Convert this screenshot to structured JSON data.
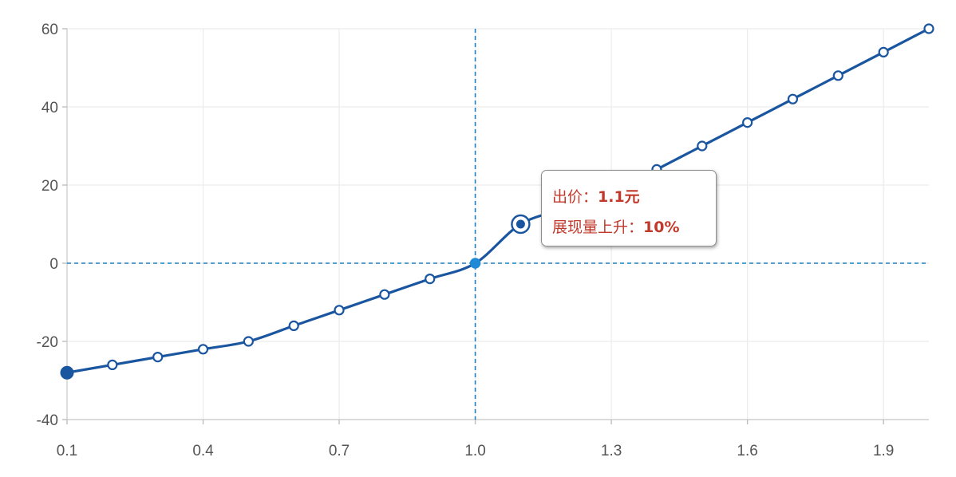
{
  "chart_data": {
    "type": "line",
    "title": "",
    "xlabel": "",
    "ylabel": "",
    "x": [
      0.1,
      0.2,
      0.3,
      0.4,
      0.5,
      0.6,
      0.7,
      0.8,
      0.9,
      1.0,
      1.1,
      1.2,
      1.3,
      1.4,
      1.5,
      1.6,
      1.7,
      1.8,
      1.9,
      2.0
    ],
    "series": [
      {
        "values": [
          -28,
          -26,
          -24,
          -22,
          -20,
          -16,
          -12,
          -8,
          -4,
          0,
          10,
          14,
          18,
          24,
          30,
          36,
          42,
          48,
          54,
          60
        ]
      }
    ],
    "xlim": [
      0.1,
      2.0
    ],
    "ylim": [
      -40,
      60
    ],
    "x_ticks": [
      "0.1",
      "0.4",
      "0.7",
      "1.0",
      "1.3",
      "1.6",
      "1.9"
    ],
    "x_tick_values": [
      0.1,
      0.4,
      0.7,
      1.0,
      1.3,
      1.6,
      1.9
    ],
    "y_ticks": [
      "60",
      "40",
      "20",
      "0",
      "-20",
      "-40"
    ],
    "y_tick_values": [
      60,
      40,
      20,
      0,
      -20,
      -40
    ],
    "x_grid_values": [
      0.4,
      0.7,
      1.0,
      1.3,
      1.6,
      1.9
    ],
    "y_grid_values": [
      60,
      40,
      20,
      0,
      -20
    ],
    "grid": true,
    "reference_lines": {
      "x": 1.0,
      "y": 0
    },
    "highlight_start_index": 0,
    "highlight_ref_index": 9,
    "active_index": 10,
    "colors": {
      "line": "#1a56a0",
      "reference": "#1f7fbf",
      "tooltip_text": "#c0392b"
    }
  },
  "tooltip": {
    "bid_label": "出价：",
    "bid_value": "1.1元",
    "lift_label": "展现量上升：",
    "lift_value": "10%"
  }
}
